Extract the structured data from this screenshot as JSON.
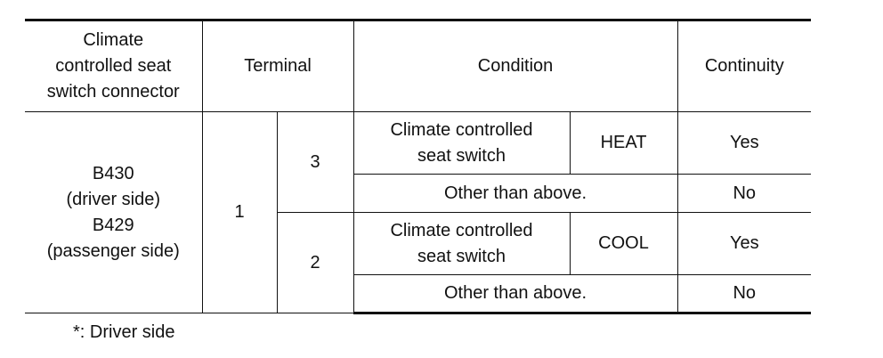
{
  "table": {
    "header": {
      "connector": [
        "Climate",
        "controlled seat",
        "switch connector"
      ],
      "terminal": "Terminal",
      "condition": "Condition",
      "continuity": "Continuity"
    },
    "connector": [
      "B430",
      "(driver side)",
      "B429",
      "(passenger side)"
    ],
    "terminal_from": "1",
    "rows": [
      {
        "terminal": "3",
        "condition": [
          "Climate controlled",
          "seat switch"
        ],
        "state": "HEAT",
        "continuity": "Yes",
        "other": "Other than above.",
        "other_continuity": "No"
      },
      {
        "terminal": "2",
        "condition": [
          "Climate controlled",
          "seat switch"
        ],
        "state": "COOL",
        "continuity": "Yes",
        "other": "Other than above.",
        "other_continuity": "No"
      }
    ]
  },
  "footnote": "*: Driver side"
}
